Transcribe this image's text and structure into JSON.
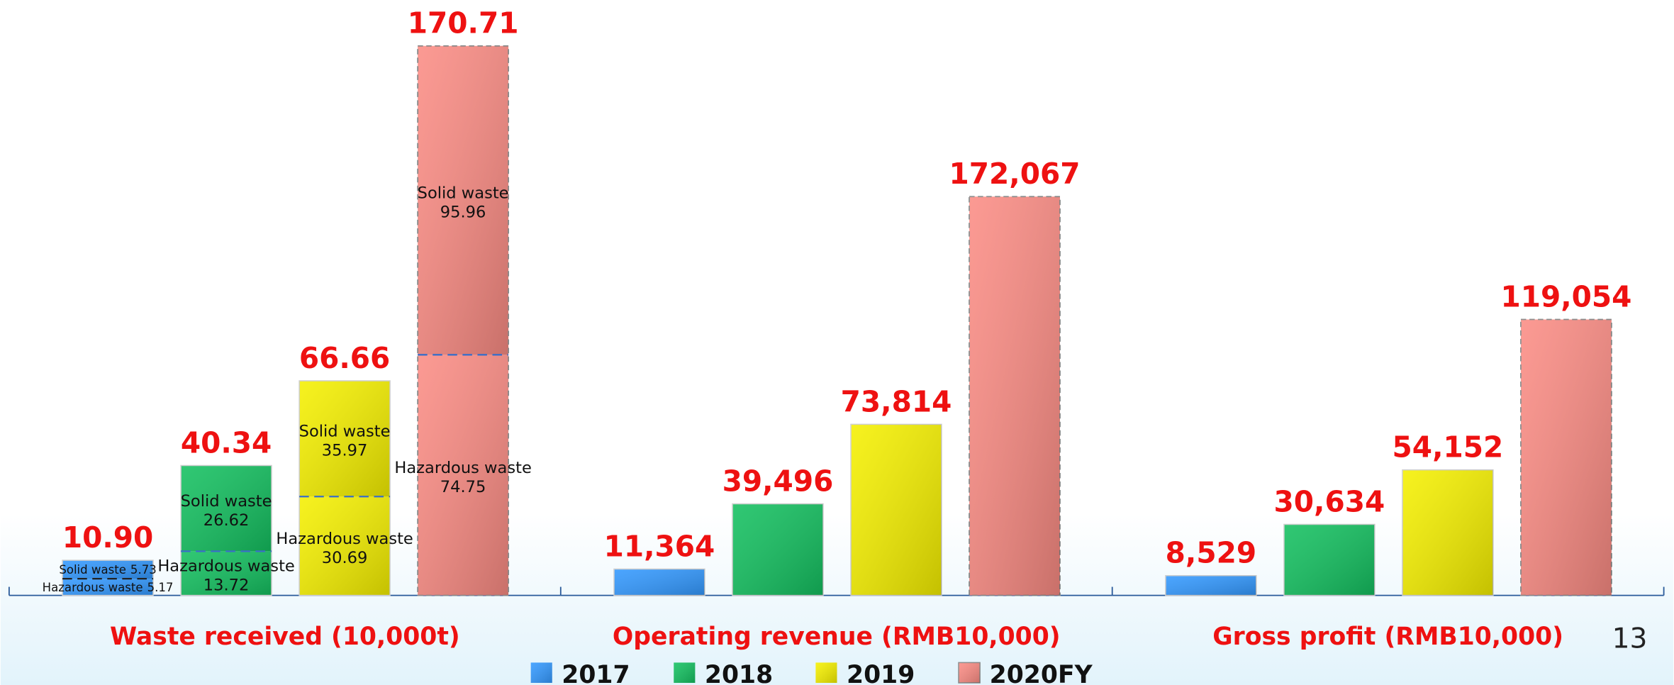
{
  "chart_data": [
    {
      "type": "stacked-bar",
      "title": "Waste received (10,000t)",
      "ylim": [
        0,
        180
      ],
      "values": [
        10.9,
        40.34,
        66.66,
        170.71
      ],
      "value_labels": [
        "10.90",
        "40.34",
        "66.66",
        "170.71"
      ],
      "series": [
        {
          "name": "Hazardous waste",
          "values": [
            5.17,
            13.72,
            30.69,
            74.75
          ]
        },
        {
          "name": "Solid waste",
          "values": [
            5.73,
            26.62,
            35.97,
            95.96
          ]
        }
      ]
    },
    {
      "type": "bar",
      "title": "Operating revenue (RMB10,000)",
      "ylim": [
        0,
        250000
      ],
      "values": [
        11364,
        39496,
        73814,
        172067
      ],
      "value_labels": [
        "11,364",
        "39,496",
        "73,814",
        "172,067"
      ]
    },
    {
      "type": "bar",
      "title": "Gross profit (RMB10,000)",
      "ylim": [
        0,
        250000
      ],
      "values": [
        8529,
        30634,
        54152,
        119054
      ],
      "value_labels": [
        "8,529",
        "30,634",
        "54,152",
        "119,054"
      ]
    }
  ],
  "legend": [
    {
      "name": "2017",
      "color": "#3399ff"
    },
    {
      "name": "2018",
      "color": "#14c060"
    },
    {
      "name": "2019",
      "color": "#f5f000"
    },
    {
      "name": "2020FY",
      "color": "#fb8c84"
    }
  ],
  "page_number": "13"
}
